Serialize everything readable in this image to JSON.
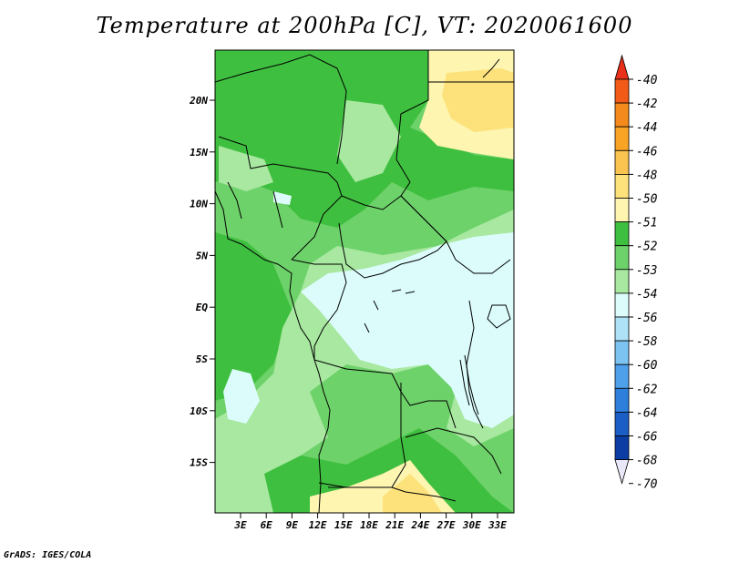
{
  "title": "Temperature at 200hPa [C], VT: 2020061600",
  "credit": "GrADS: IGES/COLA",
  "lat_labels": [
    "20N",
    "15N",
    "10N",
    "5N",
    "EQ",
    "5S",
    "10S",
    "15S"
  ],
  "lon_labels": [
    "3E",
    "6E",
    "9E",
    "12E",
    "15E",
    "18E",
    "21E",
    "24E",
    "27E",
    "30E",
    "33E"
  ],
  "colorbar": {
    "labels": [
      "-40",
      "-42",
      "-44",
      "-46",
      "-48",
      "-50",
      "-51",
      "-52",
      "-53",
      "-54",
      "-56",
      "-58",
      "-60",
      "-62",
      "-64",
      "-66",
      "-68",
      "-70"
    ],
    "colors": [
      "#e8301a",
      "#f25a17",
      "#f58a1c",
      "#f9a425",
      "#fbc350",
      "#fde27c",
      "#fdf5b0",
      "#3fbf3f",
      "#6ed26a",
      "#a8e8a0",
      "#dcfcfc",
      "#aee3f7",
      "#7cc3f2",
      "#4ea0ea",
      "#2e7fdc",
      "#1a5ec6",
      "#0c3da3",
      "#07127a"
    ]
  },
  "field_colors": {
    "c52": "#3fbf3f",
    "c53": "#6ed26a",
    "c54": "#a8e8a0",
    "c56": "#dcfcfc",
    "c50": "#fde27c",
    "c51": "#fdf5b0"
  }
}
